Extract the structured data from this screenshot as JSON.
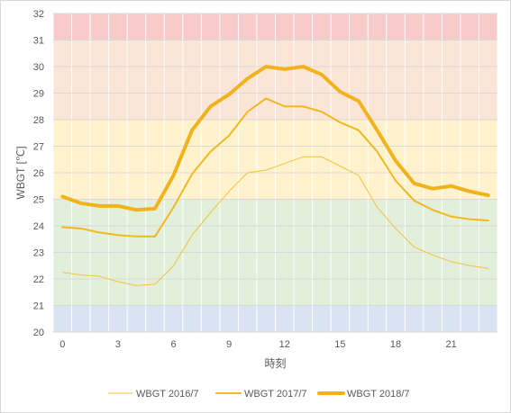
{
  "chart_data": {
    "type": "line",
    "title": "",
    "xlabel": "時刻",
    "ylabel": "WBGT [℃]",
    "xlim": [
      0,
      23
    ],
    "ylim": [
      20,
      32
    ],
    "x_ticks": [
      0,
      3,
      6,
      9,
      12,
      15,
      18,
      21
    ],
    "y_ticks": [
      20,
      21,
      22,
      23,
      24,
      25,
      26,
      27,
      28,
      29,
      30,
      31,
      32
    ],
    "grid": true,
    "legend_position": "bottom",
    "bands": [
      {
        "from": 20,
        "to": 21,
        "color": "#dae3f3"
      },
      {
        "from": 21,
        "to": 25,
        "color": "#e2efda"
      },
      {
        "from": 25,
        "to": 28,
        "color": "#fff2cc"
      },
      {
        "from": 28,
        "to": 31,
        "color": "#fbe5d6"
      },
      {
        "from": 31,
        "to": 32,
        "color": "#f8cbcb"
      }
    ],
    "x": [
      0,
      1,
      2,
      3,
      4,
      5,
      6,
      7,
      8,
      9,
      10,
      11,
      12,
      13,
      14,
      15,
      16,
      17,
      18,
      19,
      20,
      21,
      22,
      23
    ],
    "series": [
      {
        "name": "WBGT 2016/7",
        "color": "#f2c23a",
        "width": 1,
        "values": [
          22.25,
          22.15,
          22.1,
          21.9,
          21.75,
          21.8,
          22.5,
          23.65,
          24.5,
          25.3,
          26.0,
          26.1,
          26.35,
          26.6,
          26.6,
          26.25,
          25.9,
          24.7,
          23.9,
          23.2,
          22.9,
          22.65,
          22.5,
          22.4
        ]
      },
      {
        "name": "WBGT 2017/7",
        "color": "#f2b820",
        "width": 2,
        "values": [
          23.95,
          23.9,
          23.75,
          23.65,
          23.6,
          23.6,
          24.7,
          25.95,
          26.8,
          27.4,
          28.3,
          28.8,
          28.5,
          28.5,
          28.3,
          27.9,
          27.6,
          26.8,
          25.7,
          24.95,
          24.6,
          24.35,
          24.25,
          24.2
        ]
      },
      {
        "name": "WBGT 2018/7",
        "color": "#f2b21b",
        "width": 4,
        "values": [
          25.1,
          24.85,
          24.75,
          24.75,
          24.6,
          24.65,
          25.9,
          27.6,
          28.5,
          28.95,
          29.55,
          30.0,
          29.9,
          30.0,
          29.7,
          29.05,
          28.7,
          27.6,
          26.45,
          25.6,
          25.4,
          25.5,
          25.3,
          25.15
        ]
      }
    ]
  }
}
